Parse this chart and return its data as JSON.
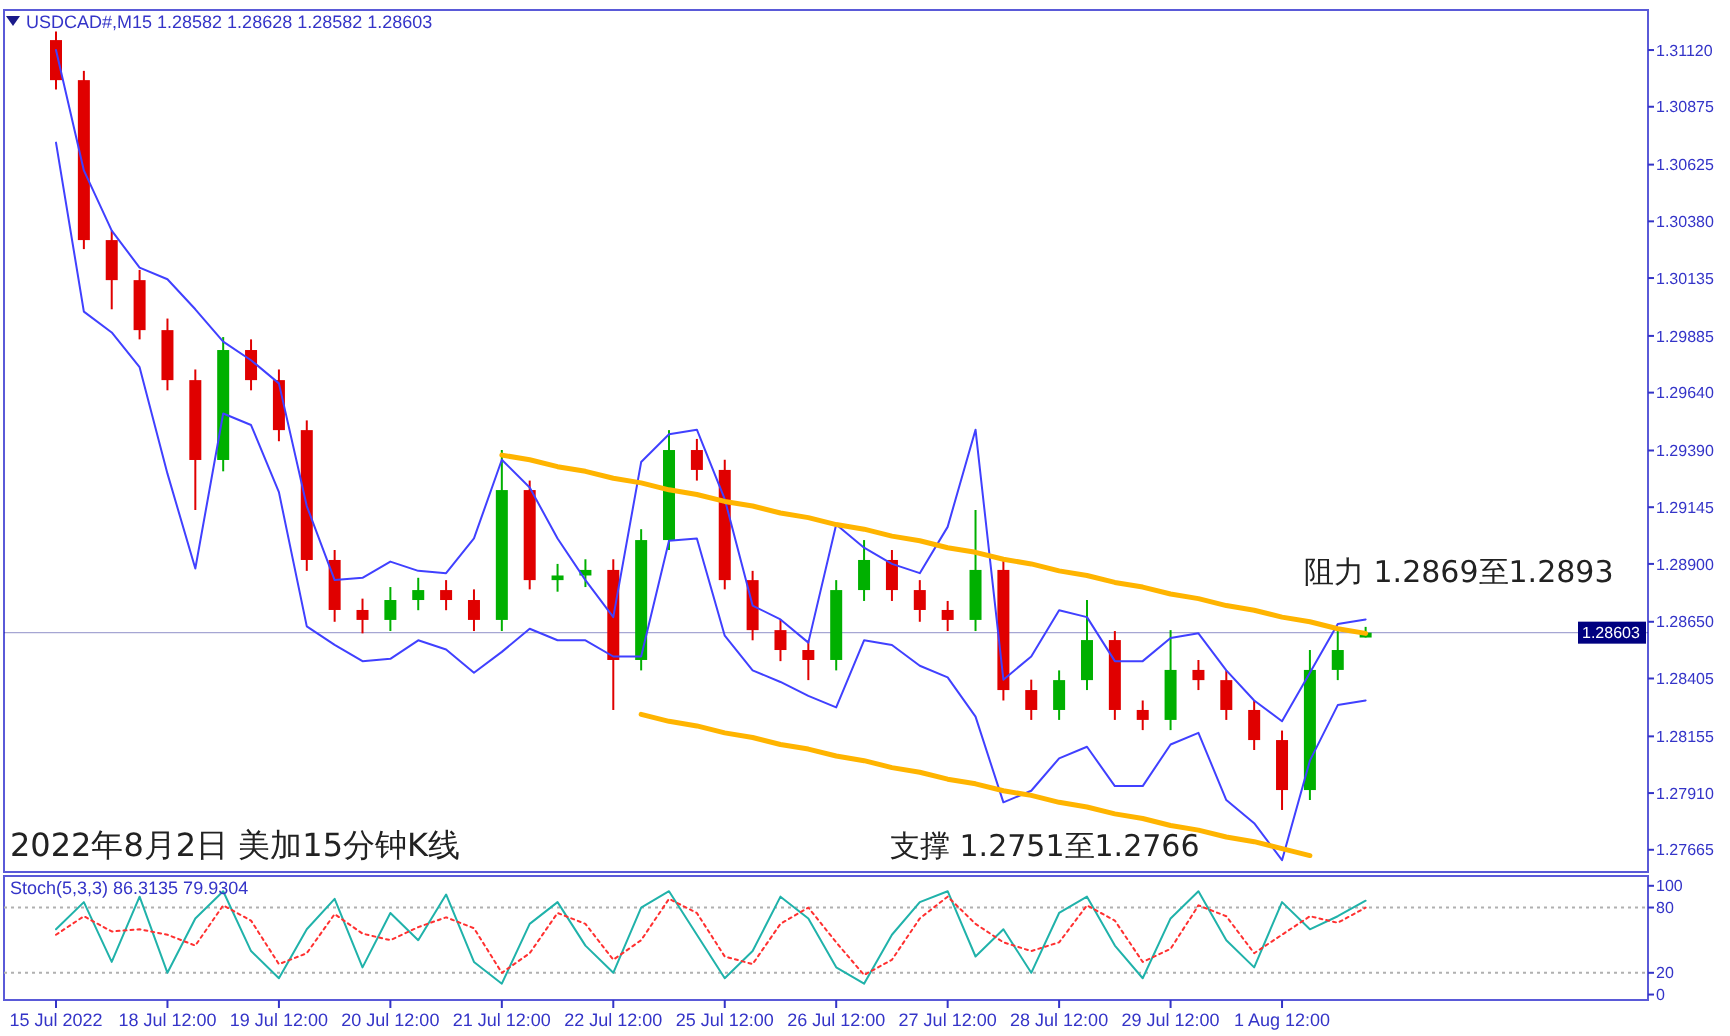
{
  "chart_data": [
    {
      "type": "candlestick",
      "title": "USDCAD#,M15  1.28582 1.28628 1.28582 1.28603",
      "ylim": [
        1.27569,
        1.31293
      ],
      "yticks": [
        {
          "value": 1.3112,
          "label": "1.31120"
        },
        {
          "value": 1.30875,
          "label": "1.30875"
        },
        {
          "value": 1.30625,
          "label": "1.30625"
        },
        {
          "value": 1.3038,
          "label": "1.30380"
        },
        {
          "value": 1.30135,
          "label": "1.30135"
        },
        {
          "value": 1.29885,
          "label": "1.29885"
        },
        {
          "value": 1.2964,
          "label": "1.29640"
        },
        {
          "value": 1.2939,
          "label": "1.29390"
        },
        {
          "value": 1.29145,
          "label": "1.29145"
        },
        {
          "value": 1.289,
          "label": "1.28900"
        },
        {
          "value": 1.2865,
          "label": "1.28650"
        },
        {
          "value": 1.28405,
          "label": "1.28405"
        },
        {
          "value": 1.28155,
          "label": "1.28155"
        },
        {
          "value": 1.2791,
          "label": "1.27910"
        },
        {
          "value": 1.27665,
          "label": "1.27665"
        }
      ],
      "categories": [
        null,
        null,
        null,
        null,
        null,
        null,
        null,
        null,
        null,
        null,
        null,
        null,
        null,
        null,
        null,
        null,
        null,
        null,
        null,
        null,
        null,
        null,
        null,
        null,
        null,
        null,
        null,
        null,
        null,
        null,
        null,
        null,
        null,
        null,
        null,
        null,
        null,
        null,
        null,
        null,
        null,
        null,
        null,
        null,
        null,
        null,
        null,
        null
      ],
      "ohlc": [
        [
          1.31163,
          1.312,
          1.3095,
          1.3099
        ],
        [
          1.3099,
          1.3103,
          1.3026,
          1.30299
        ],
        [
          1.30299,
          1.3034,
          1.3,
          1.30126
        ],
        [
          1.30126,
          1.3017,
          1.2987,
          1.2991
        ],
        [
          1.2991,
          1.2996,
          1.2965,
          1.29694
        ],
        [
          1.29694,
          1.2974,
          1.29133,
          1.29349
        ],
        [
          1.29349,
          1.2988,
          1.293,
          1.29824
        ],
        [
          1.29824,
          1.2987,
          1.2965,
          1.29694
        ],
        [
          1.29694,
          1.2974,
          1.2943,
          1.29478
        ],
        [
          1.29478,
          1.2952,
          1.2887,
          1.28917
        ],
        [
          1.28917,
          1.2896,
          1.2865,
          1.28701
        ],
        [
          1.28701,
          1.2875,
          1.286,
          1.28658
        ],
        [
          1.28658,
          1.288,
          1.2861,
          1.28744
        ],
        [
          1.28744,
          1.2884,
          1.287,
          1.28787
        ],
        [
          1.28787,
          1.2883,
          1.287,
          1.28744
        ],
        [
          1.28744,
          1.2879,
          1.2861,
          1.28658
        ],
        [
          1.28658,
          1.29392,
          1.2861,
          1.29219
        ],
        [
          1.29219,
          1.2926,
          1.2879,
          1.2883
        ],
        [
          1.2883,
          1.289,
          1.2878,
          1.2885
        ],
        [
          1.2885,
          1.2892,
          1.288,
          1.28874
        ],
        [
          1.28874,
          1.2892,
          1.28269,
          1.28485
        ],
        [
          1.28485,
          1.2905,
          1.2844,
          1.29003
        ],
        [
          1.29003,
          1.29478,
          1.2896,
          1.29392
        ],
        [
          1.29392,
          1.2944,
          1.2926,
          1.29306
        ],
        [
          1.29306,
          1.2935,
          1.2879,
          1.2883
        ],
        [
          1.2883,
          1.2887,
          1.2857,
          1.28614
        ],
        [
          1.28614,
          1.2866,
          1.2848,
          1.28528
        ],
        [
          1.28528,
          1.2857,
          1.28398,
          1.28485
        ],
        [
          1.28485,
          1.2883,
          1.2844,
          1.28787
        ],
        [
          1.28787,
          1.29003,
          1.2874,
          1.28917
        ],
        [
          1.28917,
          1.2896,
          1.2874,
          1.28787
        ],
        [
          1.28787,
          1.2883,
          1.2865,
          1.28701
        ],
        [
          1.28701,
          1.2874,
          1.2861,
          1.28658
        ],
        [
          1.28658,
          1.29133,
          1.2861,
          1.28874
        ],
        [
          1.28874,
          1.2892,
          1.2831,
          1.28355
        ],
        [
          1.28355,
          1.284,
          1.28226,
          1.28269
        ],
        [
          1.28269,
          1.2844,
          1.28226,
          1.28398
        ],
        [
          1.28398,
          1.28744,
          1.28355,
          1.28571
        ],
        [
          1.28571,
          1.2861,
          1.28226,
          1.28269
        ],
        [
          1.28269,
          1.2831,
          1.28182,
          1.28226
        ],
        [
          1.28226,
          1.28614,
          1.28182,
          1.28442
        ],
        [
          1.28442,
          1.28485,
          1.28355,
          1.28398
        ],
        [
          1.28398,
          1.2844,
          1.28226,
          1.28269
        ],
        [
          1.28269,
          1.2831,
          1.28096,
          1.28139
        ],
        [
          1.28139,
          1.2818,
          1.27837,
          1.27923
        ],
        [
          1.27923,
          1.28528,
          1.2788,
          1.28442
        ],
        [
          1.28442,
          1.28614,
          1.28398,
          1.28528
        ],
        [
          1.28582,
          1.28628,
          1.28582,
          1.28603
        ]
      ],
      "colors": [
        "#e00000",
        "#e00000",
        "#e00000",
        "#e00000",
        "#e00000",
        "#e00000",
        "#00b000",
        "#e00000",
        "#e00000",
        "#e00000",
        "#e00000",
        "#e00000",
        "#00b000",
        "#00b000",
        "#e00000",
        "#e00000",
        "#00b000",
        "#e00000",
        "#00b000",
        "#00b000",
        "#e00000",
        "#00b000",
        "#00b000",
        "#e00000",
        "#e00000",
        "#e00000",
        "#e00000",
        "#e00000",
        "#00b000",
        "#00b000",
        "#e00000",
        "#e00000",
        "#e00000",
        "#00b000",
        "#e00000",
        "#e00000",
        "#00b000",
        "#00b000",
        "#e00000",
        "#e00000",
        "#00b000",
        "#e00000",
        "#e00000",
        "#e00000",
        "#e00000",
        "#00b000",
        "#00b000",
        "#00b000"
      ],
      "series": [
        {
          "type": "line",
          "color": "#4040ff",
          "values": [
            1.3112,
            1.306,
            1.3034,
            1.3018,
            1.3013,
            1.3,
            1.2986,
            1.2978,
            1.2968,
            1.2915,
            1.2883,
            1.2884,
            1.2891,
            1.2887,
            1.2886,
            1.2901,
            1.2935,
            1.2923,
            1.2901,
            1.2883,
            1.2867,
            1.2934,
            1.2946,
            1.2948,
            1.2918,
            1.2872,
            1.2866,
            1.2856,
            1.2907,
            1.2897,
            1.289,
            1.2886,
            1.2906,
            1.2948,
            1.284,
            1.285,
            1.287,
            1.2867,
            1.2848,
            1.2848,
            1.2858,
            1.286,
            1.2844,
            1.2831,
            1.2822,
            1.2843,
            1.2864,
            1.2866
          ]
        },
        {
          "type": "line",
          "color": "#4040ff",
          "values": [
            1.3072,
            1.2999,
            1.299,
            1.2975,
            1.2929,
            1.2888,
            1.2955,
            1.295,
            1.2921,
            1.2863,
            1.2855,
            1.2848,
            1.2849,
            1.2857,
            1.2853,
            1.2843,
            1.2852,
            1.2862,
            1.2857,
            1.2857,
            1.285,
            1.285,
            1.29,
            1.2901,
            1.2859,
            1.2844,
            1.2839,
            1.2833,
            1.2828,
            1.2857,
            1.2855,
            1.2846,
            1.2841,
            1.2824,
            1.2787,
            1.2792,
            1.2806,
            1.2811,
            1.2794,
            1.2794,
            1.2812,
            1.2817,
            1.2788,
            1.2778,
            1.2762,
            1.2805,
            1.2829,
            1.2831
          ]
        },
        {
          "type": "line",
          "color": "#ffb400",
          "values": [
            null,
            null,
            null,
            null,
            null,
            null,
            null,
            null,
            null,
            null,
            null,
            null,
            null,
            null,
            null,
            null,
            1.2937,
            1.2935,
            1.2932,
            1.293,
            1.2927,
            1.2925,
            1.2922,
            1.292,
            1.2917,
            1.2915,
            1.2912,
            1.291,
            1.2907,
            1.2905,
            1.2902,
            1.29,
            1.2897,
            1.2895,
            1.2892,
            1.289,
            1.2887,
            1.2885,
            1.2882,
            1.288,
            1.2877,
            1.2875,
            1.2872,
            1.287,
            1.2867,
            1.2865,
            1.2862,
            1.286
          ]
        },
        {
          "type": "line",
          "color": "#ffb400",
          "values": [
            null,
            null,
            null,
            null,
            null,
            null,
            null,
            null,
            null,
            null,
            null,
            null,
            null,
            null,
            null,
            null,
            null,
            null,
            null,
            null,
            null,
            1.2825,
            1.2822,
            1.282,
            1.2817,
            1.2815,
            1.2812,
            1.281,
            1.2807,
            1.2805,
            1.2802,
            1.28,
            1.2797,
            1.2795,
            1.2792,
            1.279,
            1.2787,
            1.2785,
            1.2782,
            1.278,
            1.2777,
            1.2775,
            1.2772,
            1.277,
            1.2767,
            1.2764,
            null,
            null
          ]
        }
      ],
      "ref_lines": [
        {
          "axis": "y",
          "value": 1.28603,
          "label": "1.28603",
          "color": "#000080"
        }
      ],
      "annotations": [
        "2022年8月2日 美加15分钟K线",
        "阻力 1.2869至1.2893",
        "支撑 1.2751至1.2766"
      ]
    },
    {
      "type": "line",
      "title": "Stoch(5,3,3) 86.3135 79.9304",
      "ylim": [
        -5,
        109
      ],
      "yticks": [
        0,
        20,
        80,
        100
      ],
      "categories": [
        "15 Jul 2022",
        null,
        null,
        null,
        "18 Jul 12:00",
        null,
        null,
        null,
        "19 Jul 12:00",
        null,
        null,
        null,
        "20 Jul 12:00",
        null,
        null,
        null,
        "21 Jul 12:00",
        null,
        null,
        null,
        "22 Jul 12:00",
        null,
        null,
        null,
        "25 Jul 12:00",
        null,
        null,
        null,
        "26 Jul 12:00",
        null,
        null,
        null,
        "27 Jul 12:00",
        null,
        null,
        null,
        "28 Jul 12:00",
        null,
        null,
        null,
        "29 Jul 12:00",
        null,
        null,
        null,
        "1 Aug 12:00",
        null,
        null,
        null
      ],
      "series": [
        {
          "color": "#20b2aa",
          "line_style": "solid",
          "values": [
            60,
            85,
            30,
            90,
            20,
            70,
            95,
            40,
            15,
            60,
            88,
            25,
            75,
            50,
            92,
            30,
            10,
            65,
            85,
            45,
            20,
            80,
            95,
            55,
            15,
            40,
            90,
            70,
            25,
            10,
            55,
            85,
            95,
            35,
            60,
            20,
            75,
            90,
            45,
            15,
            70,
            95,
            50,
            25,
            85,
            60,
            72,
            86.3135
          ]
        },
        {
          "color": "#ff3030",
          "line_style": "dotted",
          "values": [
            55,
            72,
            58,
            60,
            55,
            45,
            82,
            68,
            28,
            38,
            74,
            56,
            50,
            62,
            71,
            61,
            20,
            38,
            75,
            65,
            32,
            50,
            88,
            75,
            35,
            28,
            65,
            80,
            48,
            18,
            32,
            70,
            90,
            65,
            48,
            40,
            48,
            82,
            68,
            30,
            42,
            82,
            72,
            38,
            55,
            72,
            66,
            79.9304
          ]
        }
      ],
      "ref_lines": [
        {
          "axis": "y",
          "value": 20,
          "line_style": "dotted",
          "color": "#b0b0b0"
        },
        {
          "axis": "y",
          "value": 80,
          "line_style": "dotted",
          "color": "#b0b0b0"
        }
      ]
    }
  ]
}
